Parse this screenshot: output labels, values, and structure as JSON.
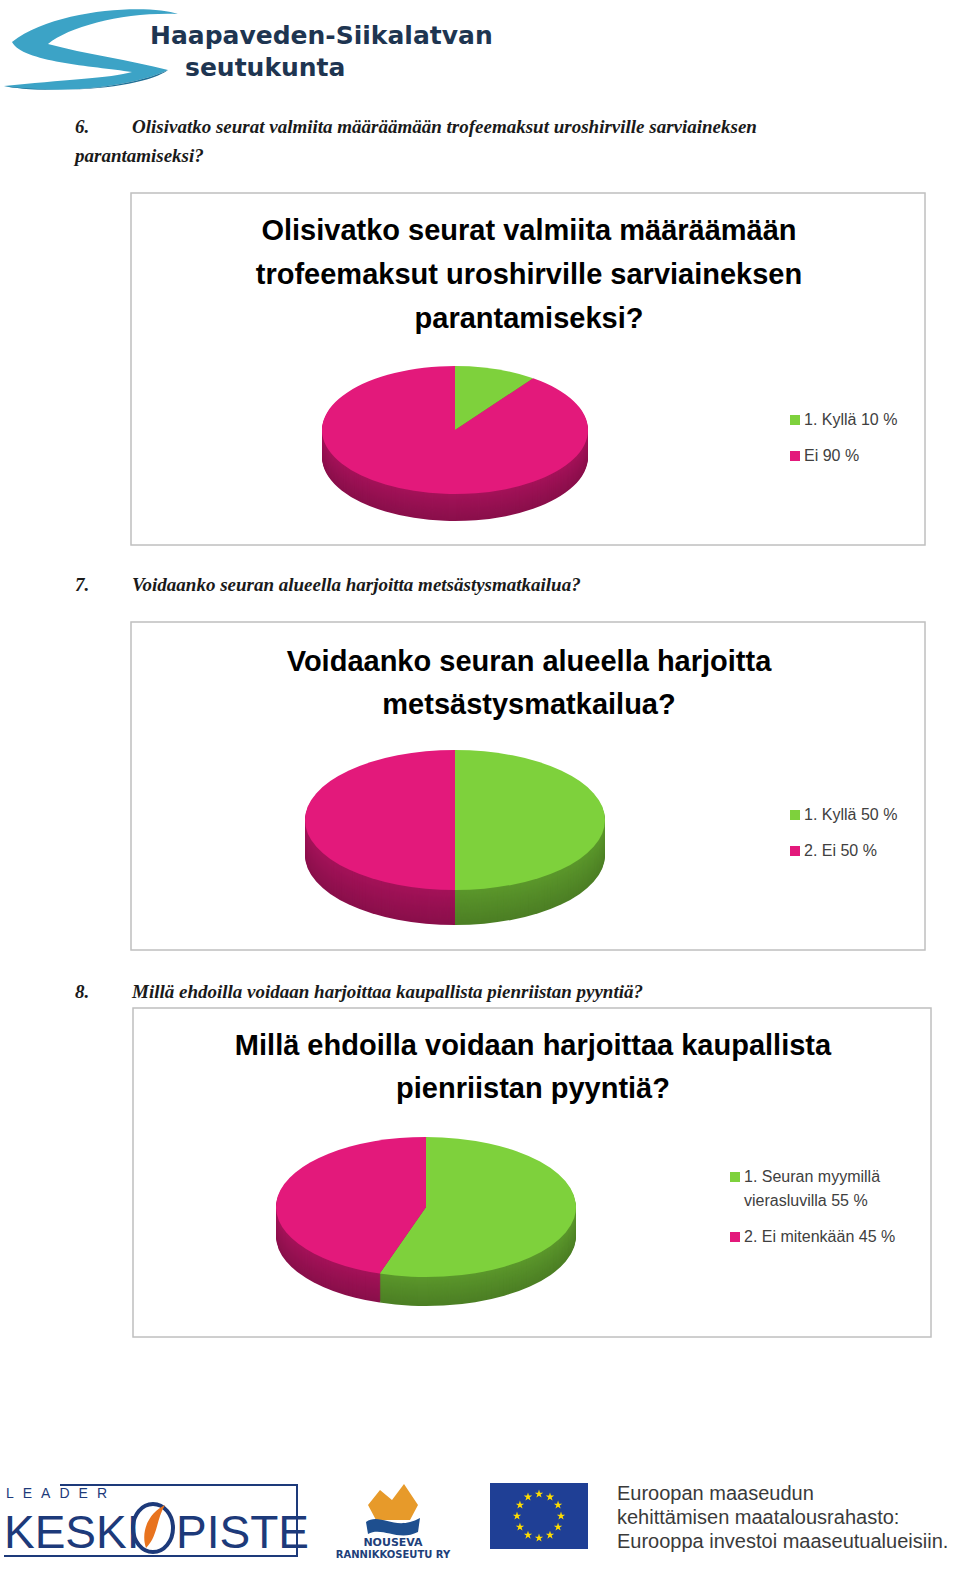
{
  "header": {
    "title": "Haapaveden-Siikalatvan",
    "subtitle": "seutukunta"
  },
  "questions": [
    {
      "number": "6.",
      "text": "Olisivatko seurat valmiita määräämään trofeemaksut uroshirville sarviaineksen parantamiseksi?"
    },
    {
      "number": "7.",
      "text": "Voidaanko seuran alueella harjoitta metsästysmatkailua?"
    },
    {
      "number": "8.",
      "text": "Millä ehdoilla voidaan harjoittaa kaupallista pienriistan pyyntiä?"
    }
  ],
  "chart_data": [
    {
      "type": "pie",
      "title": "Olisivatko seurat valmiita määräämään trofeemaksut uroshirville sarviaineksen parantamiseksi?",
      "categories": [
        "1. Kyllä 10 %",
        "Ei 90 %"
      ],
      "values": [
        10,
        90
      ],
      "colors": [
        "#7ed13c",
        "#e3197b"
      ],
      "legend": "right"
    },
    {
      "type": "pie",
      "title": "Voidaanko seuran alueella harjoitta metsästysmatkailua?",
      "categories": [
        "1. Kyllä 50 %",
        "2. Ei 50 %"
      ],
      "values": [
        50,
        50
      ],
      "colors": [
        "#7ed13c",
        "#e3197b"
      ],
      "legend": "right"
    },
    {
      "type": "pie",
      "title": "Millä ehdoilla voidaan harjoittaa kaupallista pienriistan pyyntiä?",
      "categories": [
        "1. Seuran myymillä vierasluvilla 55 %",
        "2. Ei mitenkään 45 %"
      ],
      "values": [
        55,
        45
      ],
      "colors": [
        "#7ed13c",
        "#e3197b"
      ],
      "legend": "right"
    }
  ],
  "footer": {
    "leader": "LEADER",
    "keski": "KESKI",
    "piste": "PISTE",
    "nouseva": [
      "NOUSEVA",
      "RANNIKKOSEUTU RY"
    ],
    "eu": [
      "Euroopan maaseudun",
      "kehittämisen maatalousrahasto:",
      "Eurooppa investoi maaseutualueisiin."
    ]
  }
}
